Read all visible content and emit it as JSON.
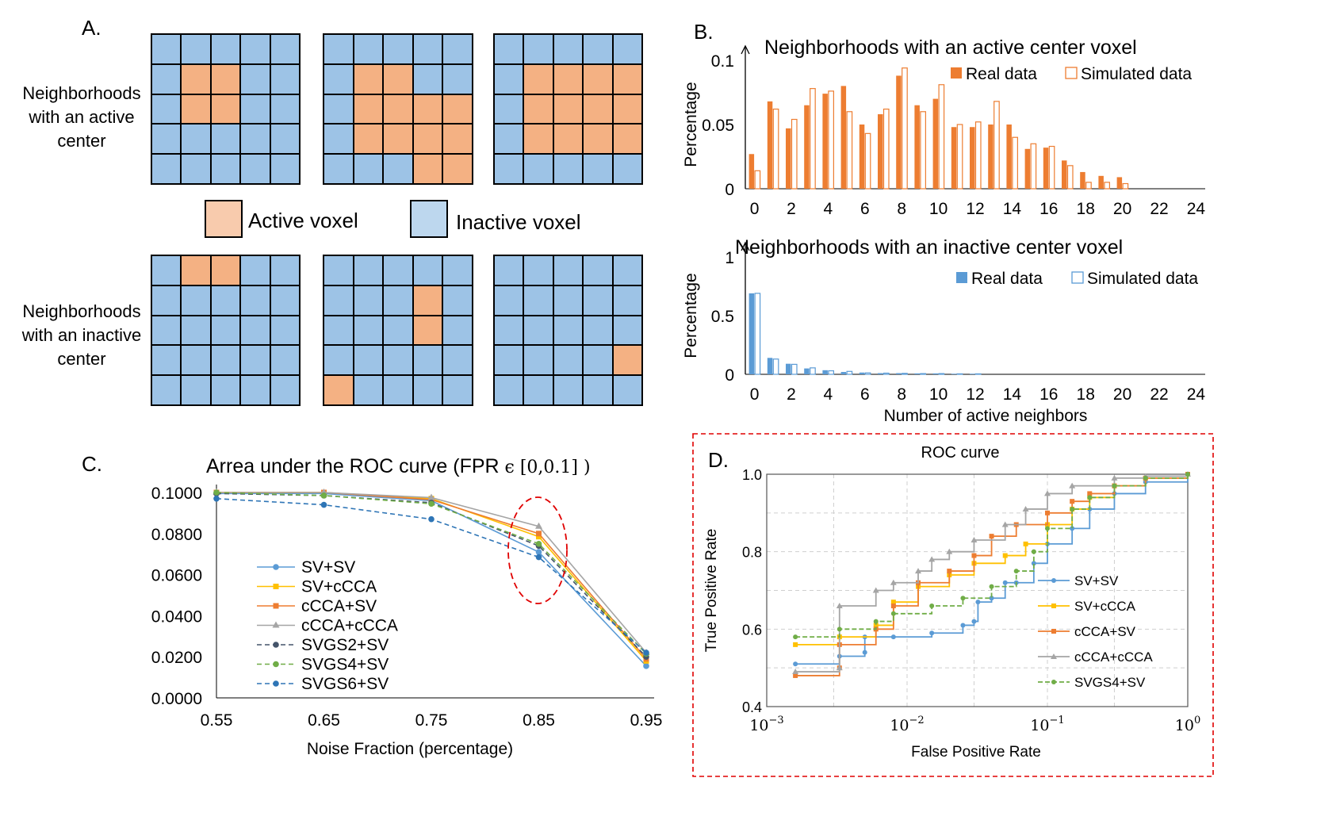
{
  "panels": {
    "a": "A.",
    "b": "B.",
    "c": "C.",
    "d": "D."
  },
  "panelA": {
    "row1_label_lines": [
      "Neighborhoods",
      "with an active",
      "center"
    ],
    "row2_label_lines": [
      "Neighborhoods",
      "with an inactive",
      "center"
    ],
    "legend_active": "Active voxel",
    "legend_inactive": "Inactive voxel",
    "colors": {
      "active": "#f4b183",
      "inactive": "#9dc3e6",
      "legend_active": "#f8cbad",
      "legend_inactive": "#bdd7ee"
    },
    "grids_row1": [
      [
        [
          0,
          0,
          0,
          0,
          0
        ],
        [
          0,
          1,
          1,
          0,
          0
        ],
        [
          0,
          1,
          1,
          0,
          0
        ],
        [
          0,
          0,
          0,
          0,
          0
        ],
        [
          0,
          0,
          0,
          0,
          0
        ]
      ],
      [
        [
          0,
          0,
          0,
          0,
          0
        ],
        [
          0,
          1,
          1,
          0,
          0
        ],
        [
          0,
          1,
          1,
          1,
          1
        ],
        [
          0,
          1,
          1,
          1,
          1
        ],
        [
          0,
          0,
          0,
          1,
          1
        ]
      ],
      [
        [
          0,
          0,
          0,
          0,
          0
        ],
        [
          0,
          1,
          1,
          1,
          1
        ],
        [
          0,
          1,
          1,
          1,
          1
        ],
        [
          0,
          1,
          1,
          1,
          1
        ],
        [
          0,
          0,
          0,
          0,
          0
        ]
      ]
    ],
    "grids_row2": [
      [
        [
          0,
          1,
          1,
          0,
          0
        ],
        [
          0,
          0,
          0,
          0,
          0
        ],
        [
          0,
          0,
          0,
          0,
          0
        ],
        [
          0,
          0,
          0,
          0,
          0
        ],
        [
          0,
          0,
          0,
          0,
          0
        ]
      ],
      [
        [
          0,
          0,
          0,
          0,
          0
        ],
        [
          0,
          0,
          0,
          1,
          0
        ],
        [
          0,
          0,
          0,
          1,
          0
        ],
        [
          0,
          0,
          0,
          0,
          0
        ],
        [
          1,
          0,
          0,
          0,
          0
        ]
      ],
      [
        [
          0,
          0,
          0,
          0,
          0
        ],
        [
          0,
          0,
          0,
          0,
          0
        ],
        [
          0,
          0,
          0,
          0,
          0
        ],
        [
          0,
          0,
          0,
          0,
          1
        ],
        [
          0,
          0,
          0,
          0,
          0
        ]
      ]
    ]
  },
  "chart_data": [
    {
      "type": "bar",
      "title": "Neighborhoods with an active center voxel",
      "ylabel": "Percentage",
      "xlabel": "",
      "ylim": [
        0,
        0.1
      ],
      "yticks": [
        "0",
        "0.05",
        "0.1"
      ],
      "xticks": [
        "0",
        "2",
        "4",
        "6",
        "8",
        "10",
        "12",
        "14",
        "16",
        "18",
        "20",
        "22",
        "24"
      ],
      "categories": [
        0,
        1,
        2,
        3,
        4,
        5,
        6,
        7,
        8,
        9,
        10,
        11,
        12,
        13,
        14,
        15,
        16,
        17,
        18,
        19,
        20,
        21,
        22,
        23,
        24
      ],
      "color": "#ed7d31",
      "series": [
        {
          "name": "Real data",
          "values": [
            0.027,
            0.068,
            0.047,
            0.065,
            0.074,
            0.08,
            0.05,
            0.058,
            0.088,
            0.065,
            0.07,
            0.048,
            0.048,
            0.05,
            0.05,
            0.031,
            0.032,
            0.022,
            0.013,
            0.01,
            0.009,
            0,
            0,
            0,
            0
          ]
        },
        {
          "name": "Simulated data",
          "values": [
            0.014,
            0.062,
            0.054,
            0.078,
            0.076,
            0.06,
            0.043,
            0.062,
            0.094,
            0.06,
            0.081,
            0.05,
            0.052,
            0.068,
            0.04,
            0.035,
            0.033,
            0.018,
            0.005,
            0.005,
            0.004,
            0,
            0,
            0,
            0
          ]
        }
      ]
    },
    {
      "type": "bar",
      "title": "Neighborhoods with an inactive center voxel",
      "ylabel": "Percentage",
      "xlabel": "Number of active neighbors",
      "ylim": [
        0,
        1
      ],
      "yticks": [
        "0",
        "0.5",
        "1"
      ],
      "xticks": [
        "0",
        "2",
        "4",
        "6",
        "8",
        "10",
        "12",
        "14",
        "16",
        "18",
        "20",
        "22",
        "24"
      ],
      "categories": [
        0,
        1,
        2,
        3,
        4,
        5,
        6,
        7,
        8,
        9,
        10,
        11,
        12,
        13,
        14,
        15,
        16,
        17,
        18,
        19,
        20,
        21,
        22,
        23,
        24
      ],
      "color": "#5b9bd5",
      "series": [
        {
          "name": "Real data",
          "values": [
            0.69,
            0.14,
            0.09,
            0.05,
            0.035,
            0.02,
            0.015,
            0.01,
            0.01,
            0.008,
            0.008,
            0.005,
            0.005,
            0,
            0,
            0,
            0,
            0,
            0,
            0,
            0,
            0,
            0,
            0,
            0
          ]
        },
        {
          "name": "Simulated data",
          "values": [
            0.69,
            0.13,
            0.085,
            0.055,
            0.03,
            0.025,
            0.012,
            0.01,
            0.008,
            0.006,
            0.006,
            0.004,
            0.004,
            0,
            0,
            0,
            0,
            0,
            0,
            0,
            0,
            0,
            0,
            0,
            0
          ]
        }
      ]
    },
    {
      "type": "line",
      "title": "Arrea under the ROC curve (FPR ",
      "title_math": "ϵ [0,0.1] )",
      "xlabel": "Noise Fraction (percentage)",
      "ylabel": "",
      "x": [
        0.55,
        0.65,
        0.75,
        0.85,
        0.95
      ],
      "xticks": [
        "0.55",
        "0.65",
        "0.75",
        "0.85",
        "0.95"
      ],
      "ylim": [
        0,
        0.1
      ],
      "yticks": [
        "0.0000",
        "0.0200",
        "0.0400",
        "0.0600",
        "0.0800",
        "0.1000"
      ],
      "series": [
        {
          "name": "SV+SV",
          "color": "#5b9bd5",
          "dash": false,
          "marker": "circle",
          "values": [
            0.0995,
            0.0995,
            0.096,
            0.071,
            0.0155
          ]
        },
        {
          "name": "SV+cCCA",
          "color": "#ffc000",
          "dash": false,
          "marker": "square",
          "values": [
            0.1,
            0.1,
            0.097,
            0.0785,
            0.018
          ]
        },
        {
          "name": "cCCA+SV",
          "color": "#ed7d31",
          "dash": false,
          "marker": "square",
          "values": [
            0.1,
            0.1,
            0.0965,
            0.08,
            0.019
          ]
        },
        {
          "name": "cCCA+cCCA",
          "color": "#a5a5a5",
          "dash": false,
          "marker": "triangle",
          "values": [
            0.1,
            0.1,
            0.0975,
            0.0835,
            0.022
          ]
        },
        {
          "name": "SVGS2+SV",
          "color": "#44546a",
          "dash": true,
          "marker": "circle",
          "values": [
            0.0995,
            0.0985,
            0.095,
            0.074,
            0.02
          ]
        },
        {
          "name": "SVGS4+SV",
          "color": "#70ad47",
          "dash": true,
          "marker": "circle",
          "values": [
            0.1,
            0.0985,
            0.0945,
            0.075,
            0.0215
          ]
        },
        {
          "name": "SVGS6+SV",
          "color": "#2e75b6",
          "dash": true,
          "marker": "circle",
          "values": [
            0.097,
            0.094,
            0.087,
            0.0685,
            0.022
          ]
        }
      ]
    },
    {
      "type": "line",
      "title": "ROC curve",
      "xlabel": "False Positive Rate",
      "ylabel": "True Positive Rate",
      "xscale": "log",
      "xlim": [
        0.001,
        1
      ],
      "ylim": [
        0.4,
        1.0
      ],
      "yticks": [
        "0.4",
        "0.6",
        "0.8",
        "1.0"
      ],
      "xticks": [
        {
          "base": "10",
          "exp": "−3"
        },
        {
          "base": "10",
          "exp": "−2"
        },
        {
          "base": "10",
          "exp": "−1"
        },
        {
          "base": "10",
          "exp": "0"
        }
      ],
      "series": [
        {
          "name": "SV+SV",
          "color": "#5b9bd5",
          "dash": false,
          "marker": "circle",
          "points": [
            [
              0.0016,
              0.51
            ],
            [
              0.0033,
              0.53
            ],
            [
              0.005,
              0.54
            ],
            [
              0.005,
              0.58
            ],
            [
              0.008,
              0.58
            ],
            [
              0.015,
              0.59
            ],
            [
              0.025,
              0.61
            ],
            [
              0.03,
              0.62
            ],
            [
              0.032,
              0.67
            ],
            [
              0.04,
              0.68
            ],
            [
              0.05,
              0.72
            ],
            [
              0.06,
              0.72
            ],
            [
              0.08,
              0.77
            ],
            [
              0.1,
              0.82
            ],
            [
              0.15,
              0.86
            ],
            [
              0.2,
              0.91
            ],
            [
              0.3,
              0.95
            ],
            [
              0.5,
              0.98
            ],
            [
              1,
              1
            ]
          ]
        },
        {
          "name": "SV+cCCA",
          "color": "#ffc000",
          "dash": false,
          "marker": "square",
          "points": [
            [
              0.0016,
              0.56
            ],
            [
              0.0033,
              0.58
            ],
            [
              0.006,
              0.61
            ],
            [
              0.008,
              0.67
            ],
            [
              0.012,
              0.71
            ],
            [
              0.02,
              0.74
            ],
            [
              0.03,
              0.77
            ],
            [
              0.05,
              0.79
            ],
            [
              0.07,
              0.82
            ],
            [
              0.1,
              0.87
            ],
            [
              0.15,
              0.91
            ],
            [
              0.2,
              0.94
            ],
            [
              0.3,
              0.97
            ],
            [
              0.5,
              0.99
            ],
            [
              1,
              1
            ]
          ]
        },
        {
          "name": "cCCA+SV",
          "color": "#ed7d31",
          "dash": false,
          "marker": "square",
          "points": [
            [
              0.0016,
              0.48
            ],
            [
              0.0033,
              0.5
            ],
            [
              0.0033,
              0.56
            ],
            [
              0.006,
              0.6
            ],
            [
              0.008,
              0.66
            ],
            [
              0.012,
              0.72
            ],
            [
              0.02,
              0.75
            ],
            [
              0.03,
              0.79
            ],
            [
              0.04,
              0.84
            ],
            [
              0.06,
              0.87
            ],
            [
              0.1,
              0.9
            ],
            [
              0.15,
              0.93
            ],
            [
              0.2,
              0.95
            ],
            [
              0.3,
              0.97
            ],
            [
              0.5,
              0.99
            ],
            [
              1,
              1
            ]
          ]
        },
        {
          "name": "cCCA+cCCA",
          "color": "#a5a5a5",
          "dash": false,
          "marker": "triangle",
          "points": [
            [
              0.0016,
              0.49
            ],
            [
              0.0033,
              0.5
            ],
            [
              0.0033,
              0.66
            ],
            [
              0.006,
              0.7
            ],
            [
              0.008,
              0.72
            ],
            [
              0.012,
              0.75
            ],
            [
              0.015,
              0.78
            ],
            [
              0.02,
              0.8
            ],
            [
              0.03,
              0.83
            ],
            [
              0.05,
              0.87
            ],
            [
              0.07,
              0.91
            ],
            [
              0.1,
              0.95
            ],
            [
              0.15,
              0.97
            ],
            [
              0.3,
              0.99
            ],
            [
              0.5,
              0.995
            ],
            [
              1,
              1
            ]
          ]
        },
        {
          "name": "SVGS4+SV",
          "color": "#70ad47",
          "dash": true,
          "marker": "circle",
          "points": [
            [
              0.0016,
              0.58
            ],
            [
              0.0033,
              0.6
            ],
            [
              0.006,
              0.62
            ],
            [
              0.008,
              0.64
            ],
            [
              0.015,
              0.66
            ],
            [
              0.025,
              0.68
            ],
            [
              0.04,
              0.71
            ],
            [
              0.06,
              0.75
            ],
            [
              0.08,
              0.8
            ],
            [
              0.1,
              0.86
            ],
            [
              0.15,
              0.91
            ],
            [
              0.2,
              0.94
            ],
            [
              0.3,
              0.97
            ],
            [
              0.5,
              0.99
            ],
            [
              1,
              1
            ]
          ]
        }
      ]
    }
  ]
}
